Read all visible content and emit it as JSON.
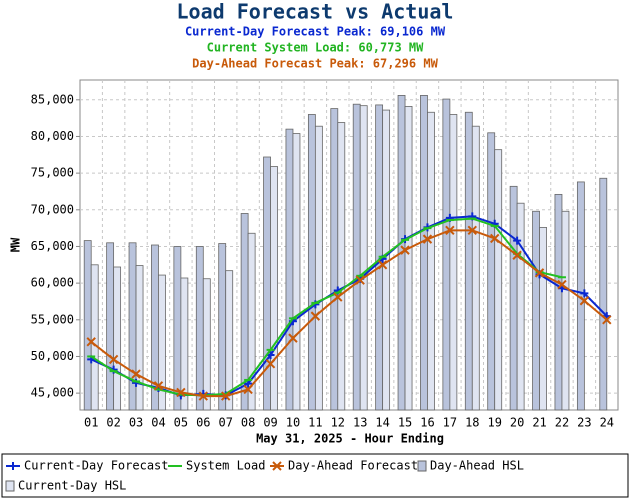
{
  "chart_data": {
    "type": "bar",
    "title": "Load Forecast vs Actual",
    "subtitles": [
      {
        "text": "Current-Day Forecast Peak:  69,106 MW",
        "color": "#0a28d0"
      },
      {
        "text": "Current System Load:  60,773 MW",
        "color": "#22b422"
      },
      {
        "text": "Day-Ahead Forecast Peak:  67,296 MW",
        "color": "#c85a0a"
      }
    ],
    "y_label": "MW",
    "x_label": "May 31, 2025 - Hour Ending",
    "categories": [
      "01",
      "02",
      "03",
      "04",
      "05",
      "06",
      "07",
      "08",
      "09",
      "10",
      "11",
      "12",
      "13",
      "14",
      "15",
      "16",
      "17",
      "18",
      "19",
      "20",
      "21",
      "22",
      "23",
      "24"
    ],
    "ylim": [
      42700,
      87700
    ],
    "yticks": [
      {
        "value": 45000,
        "label": "45,000"
      },
      {
        "value": 50000,
        "label": "50,000"
      },
      {
        "value": 55000,
        "label": "55,000"
      },
      {
        "value": 60000,
        "label": "60,000"
      },
      {
        "value": 65000,
        "label": "65,000"
      },
      {
        "value": 70000,
        "label": "70,000"
      },
      {
        "value": 75000,
        "label": "75,000"
      },
      {
        "value": 80000,
        "label": "80,000"
      },
      {
        "value": 85000,
        "label": "85,000"
      }
    ],
    "grid": true,
    "legend": "bottom",
    "series": [
      {
        "name": "Current-Day Forecast",
        "type": "line",
        "marker": "plus",
        "color": "#0a28d0",
        "values": [
          49600,
          48200,
          46400,
          45700,
          44700,
          44900,
          44700,
          46300,
          50200,
          54800,
          57100,
          59000,
          60600,
          63300,
          66000,
          67600,
          68900,
          69100,
          68100,
          65800,
          61200,
          59300,
          58600,
          55500
        ]
      },
      {
        "name": "System Load",
        "type": "line",
        "marker": "dash",
        "color": "#22c022",
        "values": [
          50000,
          48000,
          46600,
          45500,
          44800,
          44700,
          44900,
          46800,
          50900,
          55200,
          57300,
          58700,
          61000,
          63600,
          65900,
          67500,
          68600,
          68800,
          67800,
          64000,
          61500,
          60800,
          null,
          null
        ]
      },
      {
        "name": "Day-Ahead Forecast",
        "type": "line",
        "marker": "cross",
        "color": "#c85a0a",
        "values": [
          52000,
          49600,
          47600,
          46000,
          45100,
          44600,
          44600,
          45500,
          49000,
          52500,
          55500,
          58100,
          60400,
          62500,
          64500,
          66000,
          67200,
          67200,
          66100,
          63800,
          61400,
          59800,
          57600,
          55000
        ]
      },
      {
        "name": "Day-Ahead HSL",
        "type": "bar",
        "color": "#b9c3dc",
        "values": [
          65800,
          65500,
          65500,
          65200,
          65000,
          65000,
          65400,
          69500,
          77200,
          81000,
          83000,
          83800,
          84400,
          84300,
          85600,
          85600,
          85100,
          83300,
          80500,
          73200,
          69800,
          72100,
          73800,
          74300
        ]
      },
      {
        "name": "Current-Day HSL",
        "type": "bar",
        "color": "#dfe4f1",
        "values": [
          62500,
          62200,
          62400,
          61100,
          60700,
          60600,
          61700,
          66800,
          75900,
          80400,
          81400,
          81900,
          84200,
          83600,
          84100,
          83300,
          83000,
          81400,
          78200,
          70900,
          67600,
          69800,
          null,
          null
        ]
      }
    ]
  }
}
